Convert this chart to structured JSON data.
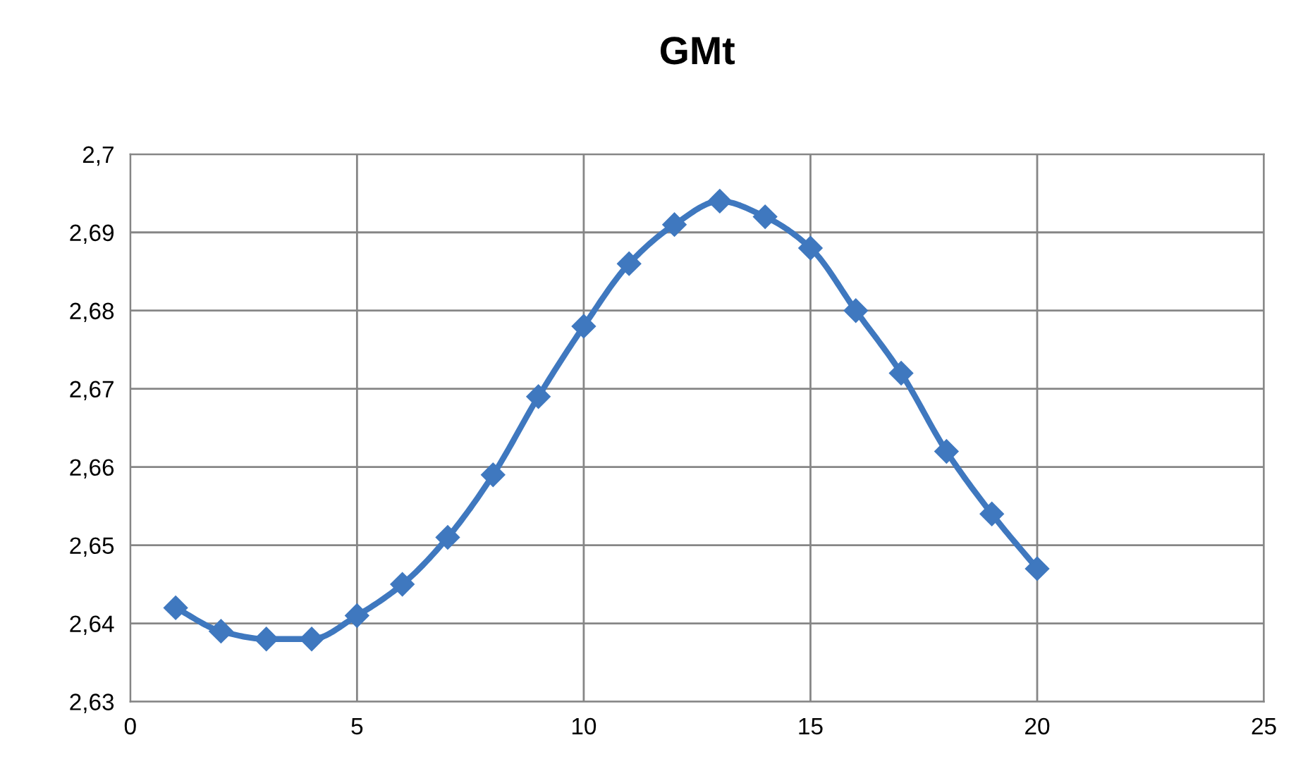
{
  "chart_data": {
    "type": "line",
    "title": "GMt",
    "x": [
      1,
      2,
      3,
      4,
      5,
      6,
      7,
      8,
      9,
      10,
      11,
      12,
      13,
      14,
      15,
      16,
      17,
      18,
      19,
      20
    ],
    "series": [
      {
        "color": "#3f78bf",
        "values": [
          2.642,
          2.639,
          2.638,
          2.638,
          2.641,
          2.645,
          2.651,
          2.659,
          2.669,
          2.678,
          2.686,
          2.691,
          2.694,
          2.692,
          2.688,
          2.68,
          2.672,
          2.662,
          2.654,
          2.647
        ]
      }
    ],
    "xlim": [
      0,
      25
    ],
    "xticks": [
      0,
      5,
      10,
      15,
      20,
      25
    ],
    "ylim": [
      2.63,
      2.7
    ],
    "yticks": [
      {
        "value": 2.63,
        "label": "2,63"
      },
      {
        "value": 2.64,
        "label": "2,64"
      },
      {
        "value": 2.65,
        "label": "2,65"
      },
      {
        "value": 2.66,
        "label": "2,66"
      },
      {
        "value": 2.67,
        "label": "2,67"
      },
      {
        "value": 2.68,
        "label": "2,68"
      },
      {
        "value": 2.69,
        "label": "2,69"
      },
      {
        "value": 2.7,
        "label": "2,7"
      }
    ],
    "grid": true,
    "marker": "diamond",
    "line_style": "solid",
    "legend": false
  }
}
